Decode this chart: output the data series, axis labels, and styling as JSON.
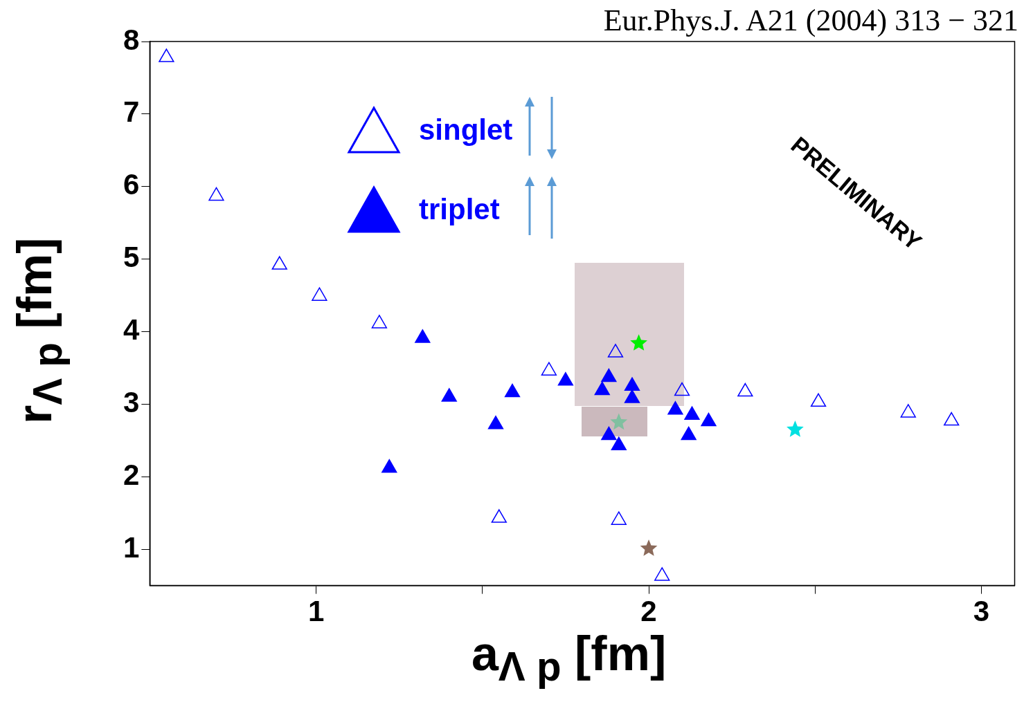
{
  "chart_data": {
    "type": "scatter",
    "xlabel": "a$_{Λ p}$ [fm]",
    "ylabel": "r$_{Λ p}$ [fm]",
    "annotations": [
      "Eur.Phys.J. A21 (2004) 313 − 321",
      "PRELIMINARY"
    ],
    "xlim": [
      0.5,
      3.1
    ],
    "xticks": [
      1,
      {
        "value": 1.5,
        "label": null
      },
      2,
      {
        "value": 2.5,
        "label": null
      },
      3
    ],
    "ylim": [
      0.5,
      8
    ],
    "yticks": [
      1,
      2,
      3,
      4,
      5,
      6,
      7,
      8
    ],
    "legend": "top left",
    "series": [
      {
        "name": "singlet",
        "marker": "triangle",
        "color": "#0000ff",
        "x": [
          0.55,
          0.7,
          0.89,
          1.01,
          1.19,
          1.7,
          1.9,
          2.1,
          2.29,
          2.51,
          2.78,
          2.91,
          1.55,
          1.91,
          2.04
        ],
        "values": [
          7.78,
          5.87,
          4.92,
          4.49,
          4.11,
          3.46,
          3.71,
          3.18,
          3.17,
          3.03,
          2.88,
          2.77,
          1.43,
          1.4,
          0.63
        ]
      },
      {
        "name": "triplet",
        "marker": "triangle",
        "color": "#0000ff",
        "x": [
          1.32,
          1.4,
          1.59,
          1.54,
          1.22,
          1.75,
          1.88,
          1.86,
          1.95,
          1.95,
          2.08,
          2.13,
          2.18,
          2.12,
          1.88,
          1.91
        ],
        "values": [
          3.91,
          3.1,
          3.16,
          2.72,
          2.12,
          3.32,
          3.37,
          3.19,
          3.25,
          3.08,
          2.92,
          2.85,
          2.76,
          2.57,
          2.57,
          2.43
        ]
      },
      {
        "marker": "star",
        "color": "#00ee00",
        "x": [
          1.97
        ],
        "values": [
          3.84
        ]
      },
      {
        "marker": "star",
        "color": "#80c0a0",
        "x": [
          1.91
        ],
        "values": [
          2.75
        ]
      },
      {
        "marker": "star",
        "color": "#00e0e0",
        "x": [
          2.44
        ],
        "values": [
          2.65
        ]
      },
      {
        "marker": "star",
        "color": "#8b6a5a",
        "x": [
          2.0
        ],
        "values": [
          1.01
        ]
      }
    ]
  }
}
